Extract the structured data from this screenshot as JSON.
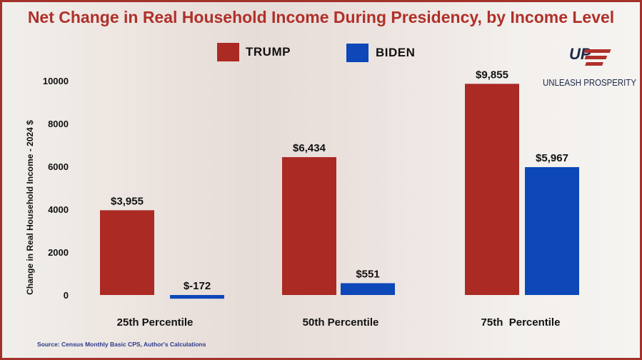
{
  "chart_data": {
    "type": "bar",
    "title": "Net Change in Real Household Income During Presidency, by Income Level",
    "ylabel": "Change in Real Household Income - 2024 $",
    "xlabel": "",
    "ylim": [
      0,
      10000
    ],
    "yticks": [
      "0",
      "2000",
      "4000",
      "6000",
      "8000",
      "10000"
    ],
    "categories": [
      "25th Percentile",
      "50th Percentile",
      "75th  Percentile"
    ],
    "series": [
      {
        "name": "TRUMP",
        "color": "#ab2a24",
        "values": [
          3955,
          6434,
          9855
        ],
        "labels": [
          "$3,955",
          "$6,434",
          "$9,855"
        ]
      },
      {
        "name": "BIDEN",
        "color": "#0d47b8",
        "values": [
          -172,
          551,
          5967
        ],
        "labels": [
          "$-172",
          "$551",
          "$5,967"
        ]
      }
    ],
    "grid": false,
    "legend": "top"
  },
  "logo": {
    "mark": "UP",
    "text": "UNLEASH PROSPERITY"
  },
  "source": "Source: Census Monthly Basic CPS, Author's Calculations"
}
